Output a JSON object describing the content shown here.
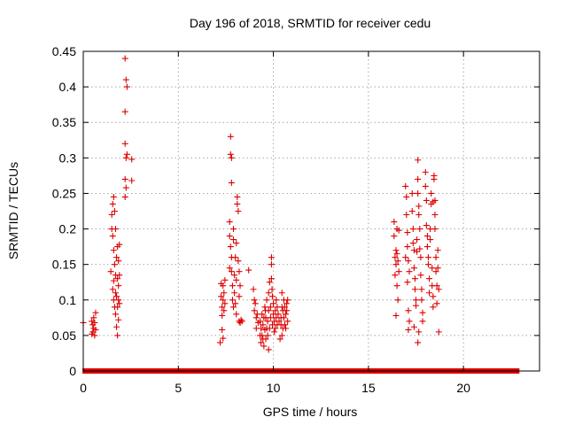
{
  "chart_data": {
    "type": "scatter",
    "title": "Day 196 of 2018, SRMTID for receiver cedu",
    "xlabel": "GPS time / hours",
    "ylabel": "SRMTID / TECUs",
    "xlim": [
      0,
      24
    ],
    "ylim": [
      0,
      0.45
    ],
    "xticks": [
      0,
      5,
      10,
      15,
      20
    ],
    "yticks": [
      0,
      0.05,
      0.1,
      0.15,
      0.2,
      0.25,
      0.3,
      0.35,
      0.4,
      0.45
    ],
    "xtick_labels": [
      "0",
      "5",
      "10",
      "15",
      "20"
    ],
    "ytick_labels": [
      "0",
      "0.05",
      "0.1",
      "0.15",
      "0.2",
      "0.25",
      "0.3",
      "0.35",
      "0.4",
      "0.45"
    ],
    "grid": true,
    "marker": "+",
    "color": "#dd0000",
    "series": [
      {
        "name": "SRMTID",
        "points": [
          [
            0.0,
            0.068
          ],
          [
            0.45,
            0.07
          ],
          [
            0.5,
            0.065
          ],
          [
            0.5,
            0.055
          ],
          [
            0.55,
            0.075
          ],
          [
            0.55,
            0.06
          ],
          [
            0.6,
            0.05
          ],
          [
            0.6,
            0.068
          ],
          [
            0.65,
            0.082
          ],
          [
            0.65,
            0.058
          ],
          [
            0.45,
            0.052
          ],
          [
            1.45,
            0.14
          ],
          [
            1.5,
            0.2
          ],
          [
            1.5,
            0.22
          ],
          [
            1.55,
            0.235
          ],
          [
            1.55,
            0.19
          ],
          [
            1.55,
            0.115
          ],
          [
            1.6,
            0.245
          ],
          [
            1.6,
            0.17
          ],
          [
            1.6,
            0.1
          ],
          [
            1.65,
            0.225
          ],
          [
            1.65,
            0.15
          ],
          [
            1.65,
            0.09
          ],
          [
            1.7,
            0.2
          ],
          [
            1.7,
            0.135
          ],
          [
            1.7,
            0.08
          ],
          [
            1.75,
            0.16
          ],
          [
            1.75,
            0.105
          ],
          [
            1.75,
            0.062
          ],
          [
            1.8,
            0.175
          ],
          [
            1.8,
            0.13
          ],
          [
            1.8,
            0.09
          ],
          [
            1.8,
            0.05
          ],
          [
            1.85,
            0.155
          ],
          [
            1.85,
            0.12
          ],
          [
            1.85,
            0.1
          ],
          [
            1.9,
            0.178
          ],
          [
            1.9,
            0.135
          ],
          [
            1.9,
            0.095
          ],
          [
            1.6,
            0.127
          ],
          [
            1.7,
            0.11
          ],
          [
            1.85,
            0.072
          ],
          [
            2.2,
            0.44
          ],
          [
            2.25,
            0.41
          ],
          [
            2.3,
            0.4
          ],
          [
            2.2,
            0.365
          ],
          [
            2.2,
            0.32
          ],
          [
            2.25,
            0.3
          ],
          [
            2.3,
            0.305
          ],
          [
            2.2,
            0.27
          ],
          [
            2.2,
            0.245
          ],
          [
            2.25,
            0.258
          ],
          [
            2.55,
            0.268
          ],
          [
            2.55,
            0.298
          ],
          [
            7.25,
            0.123
          ],
          [
            7.25,
            0.105
          ],
          [
            7.3,
            0.09
          ],
          [
            7.3,
            0.078
          ],
          [
            7.3,
            0.058
          ],
          [
            7.35,
            0.12
          ],
          [
            7.35,
            0.1
          ],
          [
            7.35,
            0.046
          ],
          [
            7.4,
            0.11
          ],
          [
            7.4,
            0.085
          ],
          [
            7.45,
            0.128
          ],
          [
            7.45,
            0.095
          ],
          [
            7.2,
            0.04
          ],
          [
            7.75,
            0.33
          ],
          [
            7.75,
            0.305
          ],
          [
            7.8,
            0.265
          ],
          [
            7.8,
            0.3
          ],
          [
            7.7,
            0.21
          ],
          [
            7.7,
            0.19
          ],
          [
            7.75,
            0.175
          ],
          [
            7.8,
            0.16
          ],
          [
            7.8,
            0.14
          ],
          [
            7.85,
            0.12
          ],
          [
            7.85,
            0.1
          ],
          [
            7.9,
            0.09
          ],
          [
            7.9,
            0.2
          ],
          [
            7.9,
            0.185
          ],
          [
            7.95,
            0.135
          ],
          [
            7.95,
            0.11
          ],
          [
            8.0,
            0.16
          ],
          [
            8.0,
            0.095
          ],
          [
            8.05,
            0.128
          ],
          [
            8.05,
            0.08
          ],
          [
            8.1,
            0.245
          ],
          [
            8.1,
            0.235
          ],
          [
            8.15,
            0.225
          ],
          [
            8.15,
            0.155
          ],
          [
            8.2,
            0.14
          ],
          [
            8.2,
            0.105
          ],
          [
            8.2,
            0.07
          ],
          [
            8.25,
            0.12
          ],
          [
            8.25,
            0.068
          ],
          [
            8.3,
            0.072
          ],
          [
            8.35,
            0.07
          ],
          [
            7.7,
            0.145
          ],
          [
            8.05,
            0.18
          ],
          [
            8.7,
            0.142
          ],
          [
            8.95,
            0.115
          ],
          [
            9.0,
            0.1
          ],
          [
            9.0,
            0.085
          ],
          [
            9.05,
            0.095
          ],
          [
            9.1,
            0.075
          ],
          [
            9.1,
            0.06
          ],
          [
            9.15,
            0.08
          ],
          [
            9.2,
            0.068
          ],
          [
            9.3,
            0.07
          ],
          [
            9.3,
            0.05
          ],
          [
            9.35,
            0.06
          ],
          [
            9.35,
            0.04
          ],
          [
            9.4,
            0.08
          ],
          [
            9.4,
            0.05
          ],
          [
            9.45,
            0.065
          ],
          [
            9.45,
            0.045
          ],
          [
            9.5,
            0.035
          ],
          [
            9.5,
            0.075
          ],
          [
            9.55,
            0.058
          ],
          [
            9.55,
            0.09
          ],
          [
            9.6,
            0.045
          ],
          [
            9.6,
            0.075
          ],
          [
            9.65,
            0.06
          ],
          [
            9.65,
            0.1
          ],
          [
            9.7,
            0.07
          ],
          [
            9.7,
            0.05
          ],
          [
            9.75,
            0.085
          ],
          [
            9.75,
            0.11
          ],
          [
            9.8,
            0.125
          ],
          [
            9.8,
            0.06
          ],
          [
            9.85,
            0.09
          ],
          [
            9.85,
            0.075
          ],
          [
            9.9,
            0.16
          ],
          [
            9.9,
            0.15
          ],
          [
            9.9,
            0.13
          ],
          [
            9.95,
            0.105
          ],
          [
            9.95,
            0.065
          ],
          [
            10.0,
            0.095
          ],
          [
            10.0,
            0.08
          ],
          [
            10.05,
            0.07
          ],
          [
            10.05,
            0.055
          ],
          [
            10.1,
            0.085
          ],
          [
            10.1,
            0.06
          ],
          [
            10.15,
            0.1
          ],
          [
            10.15,
            0.075
          ],
          [
            10.2,
            0.065
          ],
          [
            10.2,
            0.09
          ],
          [
            10.25,
            0.08
          ],
          [
            10.3,
            0.07
          ],
          [
            9.75,
            0.03
          ],
          [
            9.58,
            0.085
          ],
          [
            9.93,
            0.115
          ],
          [
            10.35,
            0.045
          ],
          [
            10.4,
            0.075
          ],
          [
            10.4,
            0.065
          ],
          [
            10.45,
            0.11
          ],
          [
            10.45,
            0.09
          ],
          [
            10.5,
            0.085
          ],
          [
            10.5,
            0.06
          ],
          [
            10.55,
            0.1
          ],
          [
            10.55,
            0.075
          ],
          [
            10.6,
            0.09
          ],
          [
            10.6,
            0.065
          ],
          [
            10.65,
            0.08
          ],
          [
            10.65,
            0.06
          ],
          [
            10.7,
            0.095
          ],
          [
            10.7,
            0.085
          ],
          [
            10.75,
            0.07
          ],
          [
            10.75,
            0.1
          ],
          [
            10.45,
            0.05
          ],
          [
            16.35,
            0.21
          ],
          [
            16.35,
            0.19
          ],
          [
            16.4,
            0.16
          ],
          [
            16.4,
            0.135
          ],
          [
            16.45,
            0.17
          ],
          [
            16.45,
            0.15
          ],
          [
            16.5,
            0.2
          ],
          [
            16.5,
            0.12
          ],
          [
            16.55,
            0.155
          ],
          [
            16.55,
            0.1
          ],
          [
            16.6,
            0.14
          ],
          [
            16.45,
            0.078
          ],
          [
            16.5,
            0.165
          ],
          [
            16.6,
            0.198
          ],
          [
            16.95,
            0.26
          ],
          [
            17.0,
            0.245
          ],
          [
            17.0,
            0.22
          ],
          [
            17.05,
            0.195
          ],
          [
            17.05,
            0.175
          ],
          [
            17.05,
            0.125
          ],
          [
            17.1,
            0.155
          ],
          [
            17.1,
            0.085
          ],
          [
            17.15,
            0.14
          ],
          [
            17.15,
            0.07
          ],
          [
            17.1,
            0.058
          ],
          [
            16.95,
            0.16
          ],
          [
            17.3,
            0.25
          ],
          [
            17.3,
            0.225
          ],
          [
            17.35,
            0.2
          ],
          [
            17.35,
            0.18
          ],
          [
            17.4,
            0.17
          ],
          [
            17.4,
            0.145
          ],
          [
            17.45,
            0.13
          ],
          [
            17.45,
            0.115
          ],
          [
            17.5,
            0.1
          ],
          [
            17.5,
            0.092
          ],
          [
            17.55,
            0.185
          ],
          [
            17.55,
            0.168
          ],
          [
            17.6,
            0.297
          ],
          [
            17.6,
            0.27
          ],
          [
            17.6,
            0.25
          ],
          [
            17.65,
            0.232
          ],
          [
            17.65,
            0.22
          ],
          [
            17.7,
            0.2
          ],
          [
            17.7,
            0.172
          ],
          [
            17.75,
            0.16
          ],
          [
            17.75,
            0.135
          ],
          [
            17.8,
            0.115
          ],
          [
            17.8,
            0.1
          ],
          [
            17.85,
            0.082
          ],
          [
            17.85,
            0.07
          ],
          [
            17.6,
            0.04
          ],
          [
            17.65,
            0.055
          ],
          [
            17.4,
            0.062
          ],
          [
            18.0,
            0.28
          ],
          [
            18.0,
            0.26
          ],
          [
            18.05,
            0.24
          ],
          [
            18.05,
            0.205
          ],
          [
            18.1,
            0.19
          ],
          [
            18.1,
            0.175
          ],
          [
            18.15,
            0.16
          ],
          [
            18.15,
            0.15
          ],
          [
            18.2,
            0.13
          ],
          [
            18.2,
            0.11
          ],
          [
            18.25,
            0.2
          ],
          [
            18.25,
            0.185
          ],
          [
            18.3,
            0.25
          ],
          [
            18.3,
            0.235
          ],
          [
            18.35,
            0.145
          ],
          [
            18.35,
            0.12
          ],
          [
            18.4,
            0.105
          ],
          [
            18.4,
            0.09
          ],
          [
            18.45,
            0.275
          ],
          [
            18.45,
            0.27
          ],
          [
            18.5,
            0.22
          ],
          [
            18.5,
            0.2
          ],
          [
            18.55,
            0.16
          ],
          [
            18.55,
            0.14
          ],
          [
            18.6,
            0.12
          ],
          [
            18.6,
            0.095
          ],
          [
            18.65,
            0.17
          ],
          [
            18.65,
            0.145
          ],
          [
            18.7,
            0.115
          ],
          [
            18.7,
            0.055
          ],
          [
            18.5,
            0.24
          ],
          [
            18.4,
            0.238
          ]
        ],
        "zero_runs": [
          [
            0.05,
            0.55
          ],
          [
            0.65,
            1.35
          ],
          [
            1.45,
            2.0
          ],
          [
            2.05,
            2.2
          ],
          [
            2.3,
            2.5
          ],
          [
            2.6,
            7.15
          ],
          [
            7.2,
            7.45
          ],
          [
            7.6,
            7.75
          ],
          [
            7.85,
            8.2
          ],
          [
            8.3,
            8.7
          ],
          [
            8.8,
            9.05
          ],
          [
            9.2,
            9.45
          ],
          [
            9.55,
            10.7
          ],
          [
            10.85,
            16.5
          ],
          [
            16.6,
            16.8
          ],
          [
            16.9,
            17.2
          ],
          [
            17.3,
            17.6
          ],
          [
            17.7,
            17.85
          ],
          [
            17.95,
            18.3
          ],
          [
            18.4,
            18.6
          ],
          [
            18.7,
            22.85
          ]
        ]
      }
    ]
  }
}
